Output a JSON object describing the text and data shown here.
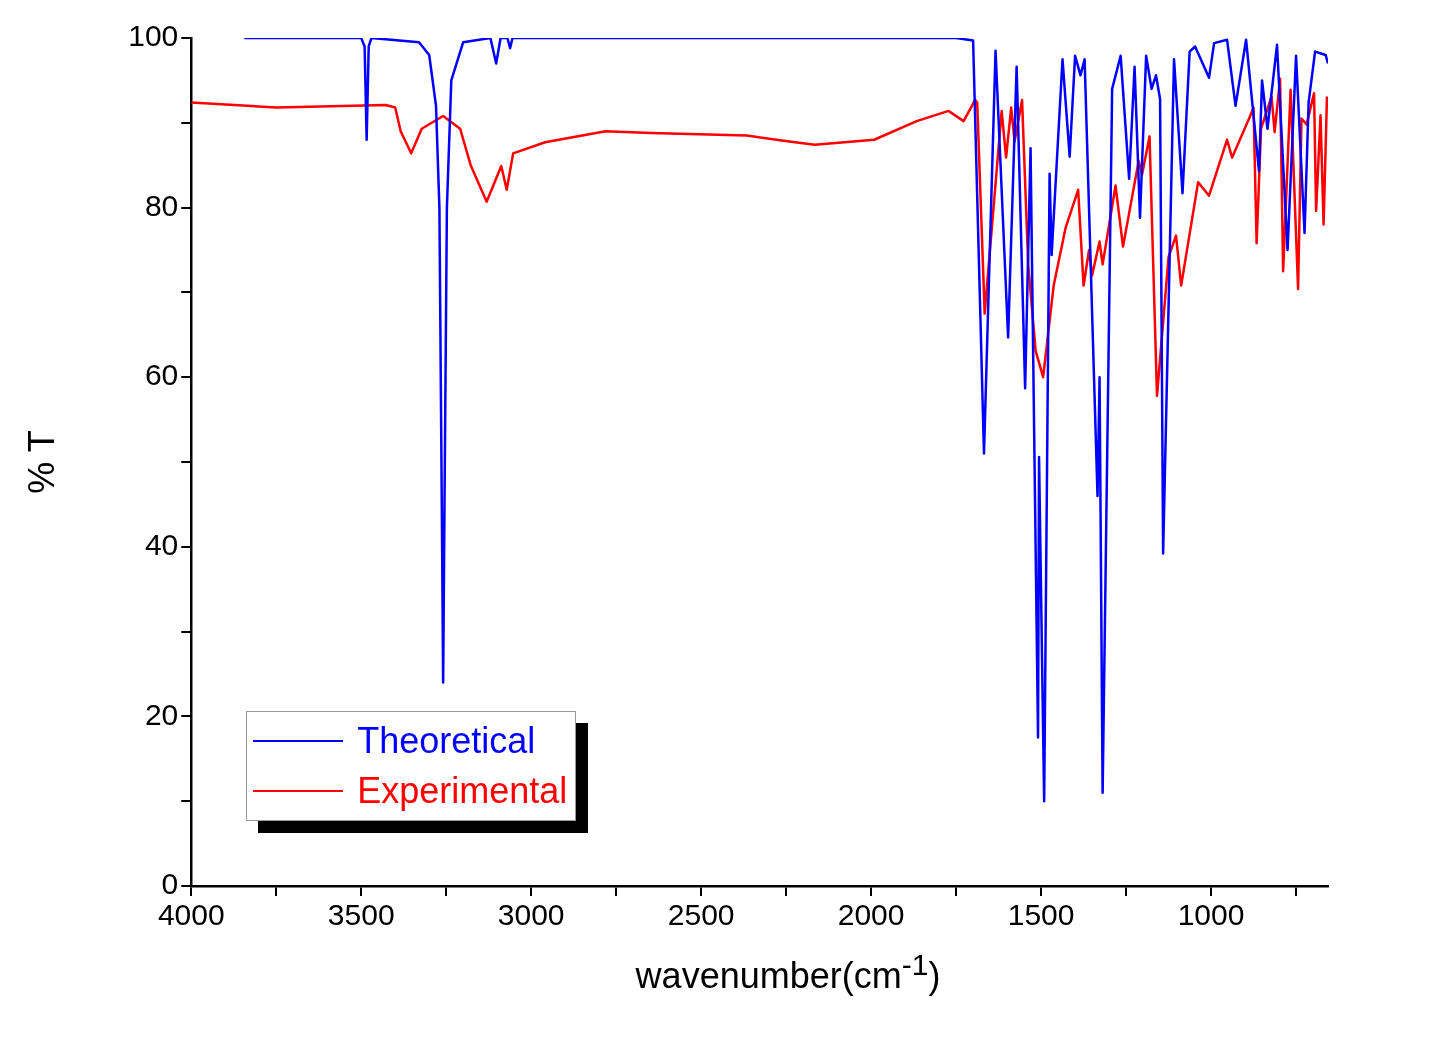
{
  "chart_data": {
    "type": "line",
    "xlabel": "wavenumber(cm$^{-1}$)",
    "ylabel": "% T",
    "xlim": [
      4000,
      656
    ],
    "ylim": [
      0,
      100
    ],
    "xticks": [
      4000,
      {
        "value": 3750,
        "label": null
      },
      3500,
      {
        "value": 3250,
        "label": null
      },
      3000,
      {
        "value": 2750,
        "label": null
      },
      2500,
      {
        "value": 2250,
        "label": null
      },
      2000,
      {
        "value": 1750,
        "label": null
      },
      1500,
      {
        "value": 1250,
        "label": null
      },
      1000,
      {
        "value": 750,
        "label": null
      }
    ],
    "yticks": [
      0,
      {
        "value": 10,
        "label": null
      },
      20,
      {
        "value": 30,
        "label": null
      },
      40,
      {
        "value": 50,
        "label": null
      },
      60,
      {
        "value": 70,
        "label": null
      },
      80,
      {
        "value": 90,
        "label": null
      },
      100
    ],
    "grid": false,
    "legend": "bottom left",
    "marker": "none",
    "line_style": "solid",
    "series": [
      {
        "name": "Theoretical",
        "color": "#0000ff",
        "x": [
          3844,
          3500,
          3490,
          3484,
          3478,
          3470,
          3330,
          3300,
          3280,
          3270,
          3262,
          3259,
          3256,
          3248,
          3235,
          3200,
          3120,
          3103,
          3090,
          3070,
          3062,
          3055,
          1750,
          1700,
          1668,
          1634,
          1597,
          1572,
          1547,
          1531,
          1509,
          1506,
          1491,
          1475,
          1469,
          1437,
          1416,
          1400,
          1384,
          1372,
          1334,
          1328,
          1319,
          1291,
          1266,
          1241,
          1225,
          1209,
          1191,
          1175,
          1162,
          1150,
          1141,
          1109,
          1084,
          1063,
          1047,
          1006,
          991,
          953,
          928,
          897,
          859,
          850,
          834,
          806,
          775,
          750,
          725,
          713,
          694,
          663,
          656
        ],
        "values": [
          100,
          100,
          99,
          88,
          99,
          100,
          99.5,
          98,
          92,
          80,
          40,
          24,
          40,
          80,
          95,
          99.5,
          100,
          97,
          100,
          100,
          98.8,
          100,
          100,
          99.7,
          51,
          98.5,
          64.7,
          96.6,
          58.7,
          87,
          17.5,
          50.6,
          10,
          84,
          74.4,
          97.5,
          86,
          97.9,
          95.6,
          97.5,
          46,
          60,
          11,
          94,
          97.9,
          83.4,
          96.6,
          78.8,
          97.9,
          94,
          95.6,
          92.8,
          39.2,
          97.5,
          81.7,
          98.4,
          99,
          95.3,
          99.4,
          99.8,
          92,
          99.8,
          84.3,
          95,
          89.3,
          99.2,
          75,
          97.9,
          77,
          92.4,
          98.4,
          98,
          97
        ]
      },
      {
        "name": "Experimental",
        "color": "#ff0000",
        "x": [
          4000,
          3750,
          3428,
          3400,
          3384,
          3353,
          3322,
          3259,
          3209,
          3178,
          3131,
          3088,
          3072,
          3053,
          2959,
          2781,
          2647,
          2366,
          2241,
          2166,
          1991,
          1866,
          1772,
          1728,
          1694,
          1688,
          1666,
          1616,
          1603,
          1588,
          1578,
          1556,
          1538,
          1516,
          1494,
          1463,
          1428,
          1391,
          1375,
          1359,
          1350,
          1328,
          1319,
          1281,
          1259,
          1213,
          1203,
          1181,
          1159,
          1125,
          1103,
          1088,
          1038,
          1006,
          953,
          938,
          884,
          875,
          866,
          853,
          822,
          813,
          797,
          788,
          766,
          744,
          734,
          719,
          697,
          691,
          678,
          669,
          659
        ],
        "values": [
          92.4,
          91.8,
          92.1,
          91.8,
          89,
          86.4,
          89.3,
          90.8,
          89.3,
          85,
          80.7,
          84.9,
          82.1,
          86.4,
          87.7,
          89,
          88.8,
          88.5,
          87.8,
          87.4,
          88,
          90.2,
          91.4,
          90.2,
          92.7,
          92.4,
          67.5,
          91.4,
          85.9,
          91.8,
          87.8,
          92.7,
          73.3,
          63.1,
          60,
          70.8,
          77.6,
          82.1,
          70.8,
          75,
          72,
          76,
          73.3,
          82.6,
          75.4,
          85.5,
          83.9,
          88.4,
          57.8,
          74.2,
          76.7,
          70.8,
          83,
          81.4,
          88,
          85.9,
          90.9,
          91.8,
          75.8,
          89.3,
          93.1,
          88.9,
          95.2,
          72.5,
          93.9,
          70.4,
          90.5,
          89.8,
          93.5,
          79.6,
          90.9,
          78,
          93.1
        ]
      }
    ]
  }
}
